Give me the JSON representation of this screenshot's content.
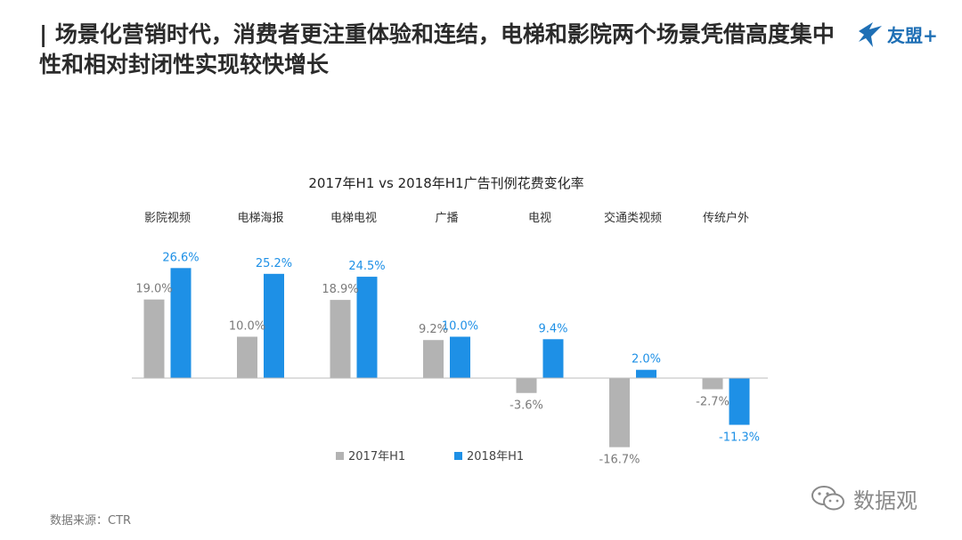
{
  "header": {
    "title": "| 场景化营销时代，消费者更注重体验和连结，电梯和影院两个场景凭借高度集中性和相对封闭性实现较快增长"
  },
  "brand": {
    "logo_text": "友盟+",
    "logo_icon": "bird-icon"
  },
  "chart_data": {
    "type": "bar",
    "title": "2017年H1 vs 2018年H1广告刊例花费变化率",
    "categories": [
      "影院视频",
      "电梯海报",
      "电梯电视",
      "广播",
      "电视",
      "交通类视频",
      "传统户外"
    ],
    "series": [
      {
        "name": "2017年H1",
        "color": "#b3b3b3",
        "values": [
          19.0,
          10.0,
          18.9,
          9.2,
          -3.6,
          -16.7,
          -2.7
        ],
        "labels": [
          "19.0%",
          "10.0%",
          "18.9%",
          "9.2%",
          "-3.6%",
          "-16.7%",
          "-2.7%"
        ]
      },
      {
        "name": "2018年H1",
        "color": "#1e90e6",
        "values": [
          26.6,
          25.2,
          24.5,
          10.0,
          9.4,
          2.0,
          -11.3
        ],
        "labels": [
          "26.6%",
          "25.2%",
          "24.5%",
          "10.0%",
          "9.4%",
          "2.0%",
          "-11.3%"
        ]
      }
    ],
    "category_position": "top",
    "legend_position": "bottom-left",
    "grid": false
  },
  "footer": {
    "source": "数据来源：CTR",
    "watermark_text": "数据观",
    "watermark_icon": "wechat-icon"
  }
}
